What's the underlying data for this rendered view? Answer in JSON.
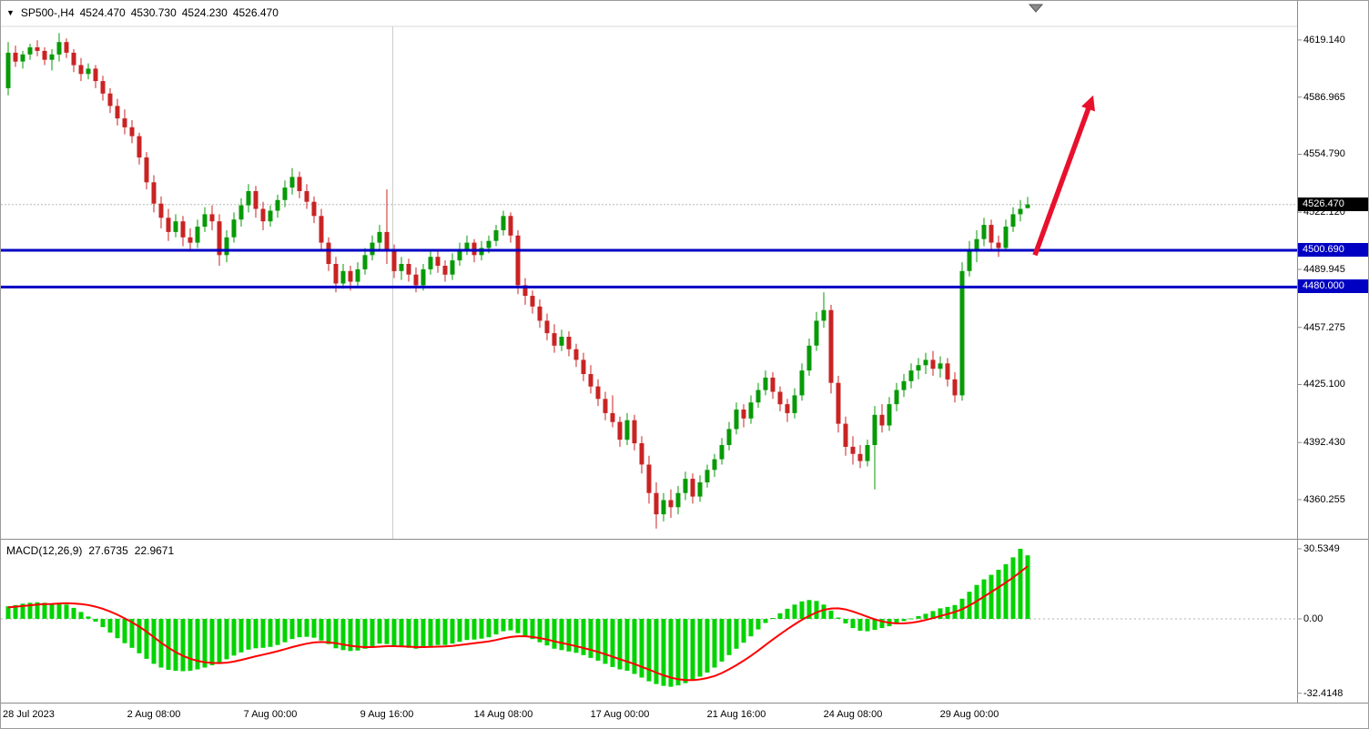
{
  "header": {
    "symbol": "SP500-,H4",
    "open": "4524.470",
    "high": "4530.730",
    "low": "4524.230",
    "close": "4526.470",
    "dropdown_icon": "▼"
  },
  "macd_panel": {
    "label": "MACD(12,26,9)",
    "main_value": "27.6735",
    "signal_value": "22.9671"
  },
  "colors": {
    "up": "#079a07",
    "down": "#c92323",
    "macd_bar": "#00d300",
    "macd_signal": "#ff0000",
    "hline": "#0000c3",
    "hline_tag_bg": "#0000c3",
    "current_tag_bg": "#000000",
    "arrow": "#e8112d",
    "grid": "#c8c8c8",
    "border": "#8c8c8c",
    "axis_text": "#000000"
  },
  "chart_data": {
    "type": "candlestick",
    "title": "SP500-,H4",
    "timeframe": "H4",
    "legend_position": "top-left",
    "grid": "off",
    "price_axis": {
      "top": 4626.8,
      "bottom": 4338.2,
      "ticks": [
        "4619.140",
        "4586.965",
        "4554.790",
        "4522.120",
        "4489.945",
        "4457.275",
        "4425.100",
        "4392.430",
        "4360.255"
      ]
    },
    "time_axis": [
      {
        "index": 0,
        "label": "28 Jul 2023"
      },
      {
        "index": 20,
        "label": "2 Aug 08:00"
      },
      {
        "index": 36,
        "label": "7 Aug 00:00"
      },
      {
        "index": 52,
        "label": "9 Aug 16:00"
      },
      {
        "index": 68,
        "label": "14 Aug 08:00"
      },
      {
        "index": 84,
        "label": "17 Aug 00:00"
      },
      {
        "index": 100,
        "label": "21 Aug 16:00"
      },
      {
        "index": 116,
        "label": "24 Aug 08:00"
      },
      {
        "index": 132,
        "label": "29 Aug 00:00"
      }
    ],
    "candles": [
      [
        4592,
        4618,
        4588,
        4612
      ],
      [
        4612,
        4616,
        4604,
        4607
      ],
      [
        4607,
        4613,
        4603,
        4611
      ],
      [
        4611,
        4617,
        4608,
        4615
      ],
      [
        4615,
        4619,
        4610,
        4613
      ],
      [
        4613,
        4615,
        4605,
        4608
      ],
      [
        4608,
        4614,
        4602,
        4611
      ],
      [
        4611,
        4623,
        4607,
        4618
      ],
      [
        4618,
        4620,
        4609,
        4612
      ],
      [
        4612,
        4614,
        4601,
        4605
      ],
      [
        4605,
        4609,
        4596,
        4600
      ],
      [
        4600,
        4606,
        4597,
        4603
      ],
      [
        4603,
        4605,
        4592,
        4596
      ],
      [
        4596,
        4599,
        4585,
        4589
      ],
      [
        4589,
        4592,
        4578,
        4582
      ],
      [
        4582,
        4586,
        4571,
        4575
      ],
      [
        4575,
        4580,
        4566,
        4570
      ],
      [
        4570,
        4574,
        4561,
        4565
      ],
      [
        4565,
        4567,
        4549,
        4553
      ],
      [
        4553,
        4556,
        4535,
        4539
      ],
      [
        4539,
        4543,
        4522,
        4527
      ],
      [
        4527,
        4531,
        4513,
        4519
      ],
      [
        4519,
        4524,
        4506,
        4511
      ],
      [
        4511,
        4521,
        4508,
        4517
      ],
      [
        4517,
        4520,
        4503,
        4508
      ],
      [
        4508,
        4513,
        4500,
        4505
      ],
      [
        4505,
        4518,
        4502,
        4514
      ],
      [
        4514,
        4525,
        4511,
        4521
      ],
      [
        4521,
        4526,
        4512,
        4517
      ],
      [
        4517,
        4521,
        4492,
        4498
      ],
      [
        4498,
        4512,
        4494,
        4508
      ],
      [
        4508,
        4522,
        4505,
        4518
      ],
      [
        4518,
        4530,
        4514,
        4526
      ],
      [
        4526,
        4538,
        4522,
        4534
      ],
      [
        4534,
        4537,
        4519,
        4524
      ],
      [
        4524,
        4528,
        4512,
        4517
      ],
      [
        4517,
        4526,
        4514,
        4523
      ],
      [
        4523,
        4532,
        4519,
        4529
      ],
      [
        4529,
        4540,
        4525,
        4536
      ],
      [
        4536,
        4547,
        4532,
        4542
      ],
      [
        4542,
        4545,
        4530,
        4534
      ],
      [
        4534,
        4538,
        4524,
        4528
      ],
      [
        4528,
        4531,
        4516,
        4520
      ],
      [
        4520,
        4524,
        4501,
        4505
      ],
      [
        4505,
        4508,
        4489,
        4493
      ],
      [
        4493,
        4497,
        4477,
        4482
      ],
      [
        4482,
        4493,
        4479,
        4489
      ],
      [
        4489,
        4492,
        4478,
        4483
      ],
      [
        4483,
        4494,
        4480,
        4490
      ],
      [
        4490,
        4502,
        4487,
        4498
      ],
      [
        4498,
        4509,
        4495,
        4505
      ],
      [
        4505,
        4515,
        4501,
        4511
      ],
      [
        4511,
        4535,
        4493,
        4500
      ],
      [
        4500,
        4504,
        4485,
        4489
      ],
      [
        4489,
        4497,
        4484,
        4493
      ],
      [
        4493,
        4496,
        4483,
        4487
      ],
      [
        4487,
        4491,
        4477,
        4481
      ],
      [
        4481,
        4493,
        4478,
        4490
      ],
      [
        4490,
        4501,
        4487,
        4497
      ],
      [
        4497,
        4500,
        4488,
        4492
      ],
      [
        4492,
        4495,
        4483,
        4487
      ],
      [
        4487,
        4499,
        4484,
        4495
      ],
      [
        4495,
        4505,
        4492,
        4501
      ],
      [
        4501,
        4509,
        4498,
        4505
      ],
      [
        4505,
        4507,
        4494,
        4498
      ],
      [
        4498,
        4506,
        4495,
        4502
      ],
      [
        4502,
        4509,
        4499,
        4506
      ],
      [
        4506,
        4515,
        4503,
        4512
      ],
      [
        4512,
        4523,
        4509,
        4520
      ],
      [
        4520,
        4522,
        4505,
        4509
      ],
      [
        4509,
        4512,
        4476,
        4481
      ],
      [
        4481,
        4485,
        4470,
        4475
      ],
      [
        4475,
        4478,
        4465,
        4469
      ],
      [
        4469,
        4473,
        4457,
        4461
      ],
      [
        4461,
        4465,
        4450,
        4454
      ],
      [
        4454,
        4459,
        4443,
        4447
      ],
      [
        4447,
        4456,
        4444,
        4452
      ],
      [
        4452,
        4455,
        4441,
        4445
      ],
      [
        4445,
        4448,
        4435,
        4439
      ],
      [
        4439,
        4443,
        4427,
        4431
      ],
      [
        4431,
        4436,
        4420,
        4424
      ],
      [
        4424,
        4428,
        4413,
        4417
      ],
      [
        4417,
        4421,
        4405,
        4409
      ],
      [
        4409,
        4419,
        4401,
        4404
      ],
      [
        4404,
        4407,
        4390,
        4394
      ],
      [
        4394,
        4409,
        4391,
        4405
      ],
      [
        4405,
        4408,
        4388,
        4392
      ],
      [
        4392,
        4396,
        4375,
        4380
      ],
      [
        4380,
        4385,
        4358,
        4364
      ],
      [
        4364,
        4370,
        4344,
        4352
      ],
      [
        4352,
        4364,
        4348,
        4360
      ],
      [
        4360,
        4366,
        4350,
        4356
      ],
      [
        4356,
        4368,
        4352,
        4364
      ],
      [
        4364,
        4376,
        4360,
        4372
      ],
      [
        4372,
        4375,
        4358,
        4362
      ],
      [
        4362,
        4374,
        4359,
        4370
      ],
      [
        4370,
        4380,
        4367,
        4377
      ],
      [
        4377,
        4386,
        4373,
        4383
      ],
      [
        4383,
        4395,
        4380,
        4391
      ],
      [
        4391,
        4404,
        4388,
        4400
      ],
      [
        4400,
        4415,
        4397,
        4411
      ],
      [
        4411,
        4414,
        4401,
        4406
      ],
      [
        4406,
        4419,
        4403,
        4415
      ],
      [
        4415,
        4426,
        4412,
        4422
      ],
      [
        4422,
        4433,
        4419,
        4429
      ],
      [
        4429,
        4432,
        4417,
        4421
      ],
      [
        4421,
        4424,
        4410,
        4414
      ],
      [
        4414,
        4417,
        4404,
        4409
      ],
      [
        4409,
        4423,
        4406,
        4419
      ],
      [
        4419,
        4437,
        4416,
        4433
      ],
      [
        4433,
        4451,
        4430,
        4447
      ],
      [
        4447,
        4466,
        4444,
        4461
      ],
      [
        4461,
        4477,
        4457,
        4467
      ],
      [
        4467,
        4470,
        4420,
        4426
      ],
      [
        4426,
        4430,
        4398,
        4403
      ],
      [
        4403,
        4407,
        4385,
        4390
      ],
      [
        4390,
        4396,
        4380,
        4386
      ],
      [
        4386,
        4391,
        4378,
        4382
      ],
      [
        4382,
        4394,
        4379,
        4391
      ],
      [
        4391,
        4413,
        4366,
        4408
      ],
      [
        4408,
        4414,
        4398,
        4402
      ],
      [
        4402,
        4418,
        4399,
        4414
      ],
      [
        4414,
        4426,
        4410,
        4422
      ],
      [
        4422,
        4431,
        4418,
        4427
      ],
      [
        4427,
        4437,
        4423,
        4433
      ],
      [
        4433,
        4440,
        4428,
        4436
      ],
      [
        4436,
        4443,
        4431,
        4439
      ],
      [
        4439,
        4444,
        4430,
        4434
      ],
      [
        4434,
        4441,
        4429,
        4437
      ],
      [
        4437,
        4440,
        4424,
        4428
      ],
      [
        4428,
        4432,
        4415,
        4419
      ],
      [
        4419,
        4494,
        4416,
        4489
      ],
      [
        4489,
        4506,
        4486,
        4501
      ],
      [
        4501,
        4512,
        4494,
        4507
      ],
      [
        4507,
        4519,
        4503,
        4515
      ],
      [
        4515,
        4518,
        4501,
        4505
      ],
      [
        4505,
        4509,
        4497,
        4502
      ],
      [
        4502,
        4518,
        4500,
        4514
      ],
      [
        4514,
        4525,
        4511,
        4521
      ],
      [
        4521,
        4529,
        4517,
        4524
      ],
      [
        4524.47,
        4530.73,
        4524.23,
        4526.47
      ]
    ],
    "hlines": [
      {
        "price": 4500.69,
        "label": "4500.690"
      },
      {
        "price": 4480.0,
        "label": "4480.000"
      }
    ],
    "current_price": {
      "value": 4526.47,
      "label": "4526.470"
    },
    "arrow": {
      "from_index": 141,
      "from_price": 4498,
      "to_index": 149,
      "to_price": 4588
    },
    "vline_index": 52.8,
    "macd": {
      "top": 33.7,
      "bottom": -36.5,
      "ticks": [
        {
          "value": 30.5349,
          "label": "30.5349"
        },
        {
          "value": 0,
          "label": "0.00"
        },
        {
          "value": -32.4148,
          "label": "-32.4148"
        }
      ],
      "histogram": [
        5.5,
        6,
        6.6,
        7,
        7.2,
        7,
        6.6,
        6.9,
        6.2,
        4.8,
        3,
        1,
        -1.2,
        -3.6,
        -6,
        -8.4,
        -10.6,
        -12.6,
        -15,
        -17.4,
        -19.6,
        -21.2,
        -22.2,
        -22.6,
        -22.8,
        -22.6,
        -22,
        -21.2,
        -20.2,
        -19,
        -17.6,
        -16,
        -14.6,
        -13.4,
        -12.8,
        -12.6,
        -12.2,
        -11.4,
        -10.2,
        -8.8,
        -8,
        -7.8,
        -8.2,
        -9.4,
        -11,
        -12.8,
        -13.6,
        -14,
        -13.8,
        -13,
        -12,
        -10.8,
        -11,
        -11.8,
        -12.2,
        -12.6,
        -13,
        -12.6,
        -11.8,
        -11.4,
        -11.4,
        -10.8,
        -10,
        -9.2,
        -9,
        -8.6,
        -8,
        -6.8,
        -5.4,
        -5,
        -6.2,
        -7.6,
        -8.8,
        -10.2,
        -11.6,
        -13,
        -13.6,
        -14.2,
        -14.8,
        -15.8,
        -17,
        -18.2,
        -19.6,
        -21,
        -22,
        -22.6,
        -24,
        -25.6,
        -27.2,
        -28.4,
        -29.2,
        -29.6,
        -29,
        -28,
        -26.8,
        -25.2,
        -23.4,
        -21.2,
        -18.6,
        -15.8,
        -13,
        -10.4,
        -7.6,
        -4.6,
        -1.8,
        0.4,
        2.4,
        4.4,
        6.2,
        7.6,
        8.2,
        7.8,
        6.2,
        3.6,
        0.6,
        -2,
        -4,
        -5.2,
        -5.4,
        -4.8,
        -4,
        -3.2,
        -2,
        -1,
        0.2,
        1.2,
        2.2,
        3.4,
        4.6,
        5.2,
        6,
        8.8,
        11.8,
        14.8,
        17.2,
        19.2,
        21.4,
        23.8,
        26.8,
        30.5349,
        27.6735
      ],
      "signal": [
        5,
        5.3,
        5.6,
        5.9,
        6.2,
        6.4,
        6.5,
        6.7,
        6.8,
        6.7,
        6.4,
        6,
        5.3,
        4.4,
        3.2,
        1.8,
        0.2,
        -1.5,
        -3.4,
        -5.6,
        -8,
        -10.4,
        -12.6,
        -14.5,
        -16.1,
        -17.4,
        -18.3,
        -18.9,
        -19.2,
        -19.3,
        -19.1,
        -18.6,
        -17.9,
        -17.1,
        -16.3,
        -15.6,
        -14.9,
        -14.1,
        -13.2,
        -12.3,
        -11.5,
        -10.8,
        -10.3,
        -10.1,
        -10.2,
        -10.6,
        -11.2,
        -11.7,
        -12.1,
        -12.3,
        -12.3,
        -12.1,
        -11.9,
        -11.9,
        -12,
        -12.1,
        -12.3,
        -12.3,
        -12.2,
        -12.1,
        -12,
        -11.8,
        -11.4,
        -11,
        -10.6,
        -10.2,
        -9.8,
        -9.2,
        -8.5,
        -7.9,
        -7.6,
        -7.6,
        -7.9,
        -8.4,
        -9,
        -9.8,
        -10.5,
        -11.2,
        -11.9,
        -12.7,
        -13.5,
        -14.4,
        -15.4,
        -16.5,
        -17.6,
        -18.6,
        -19.7,
        -20.9,
        -22.1,
        -23.4,
        -24.6,
        -25.6,
        -26.3,
        -26.7,
        -26.7,
        -26.4,
        -25.8,
        -24.9,
        -23.6,
        -22,
        -20.2,
        -18.2,
        -16.1,
        -13.8,
        -11.4,
        -9,
        -6.7,
        -4.5,
        -2.4,
        -0.4,
        1.3,
        2.8,
        3.9,
        4.5,
        4.6,
        4.1,
        3.2,
        2.1,
        0.9,
        -0.2,
        -1.1,
        -1.7,
        -2,
        -2,
        -1.7,
        -1.2,
        -0.5,
        0.3,
        1.2,
        2.1,
        3,
        4.2,
        5.8,
        7.7,
        9.7,
        11.7,
        13.7,
        15.8,
        18,
        20.4,
        22.9671
      ]
    }
  }
}
